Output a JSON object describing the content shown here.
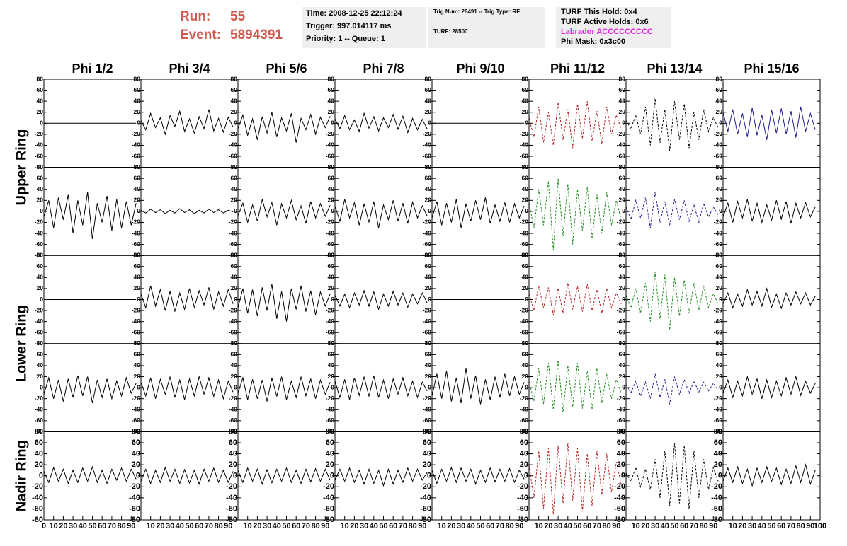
{
  "header": {
    "run_label": "Run:",
    "run": "55",
    "event_label": "Event:",
    "event": "5894391",
    "info_1": [
      "Time: 2008-12-25 22:12:24",
      "Trigger: 997.014117 ms",
      "Priority: 1 -- Queue: 1"
    ],
    "info_2": [
      "Trig Num: 28491 -- Trig Type: RF",
      "TURF: 28500"
    ],
    "info_3": [
      "TURF This Hold: 0x4",
      "TURF Active Holds: 0x6",
      "Labrador ACCCCCCCCC",
      "Phi Mask: 0x3c00"
    ]
  },
  "grid": {
    "columns": [
      "Phi 1/2",
      "Phi 3/4",
      "Phi 5/6",
      "Phi 7/8",
      "Phi 9/10",
      "Phi 11/12",
      "Phi 13/14",
      "Phi 15/16"
    ],
    "ring_labels": [
      "Upper Ring",
      "Lower Ring",
      "Nadir Ring"
    ],
    "xlim": [
      0,
      100
    ],
    "ylim": [
      -80,
      80
    ],
    "yticks": [
      -80,
      -60,
      -40,
      -20,
      0,
      20,
      40,
      60,
      80
    ],
    "xticks": [
      0,
      10,
      20,
      30,
      40,
      50,
      60,
      70,
      80,
      90,
      100
    ],
    "x": [
      0,
      5,
      10,
      15,
      20,
      25,
      30,
      35,
      40,
      45,
      50,
      55,
      60,
      65,
      70,
      75,
      80,
      85,
      90,
      95
    ],
    "panels": [
      [
        {
          "color": "#000000",
          "dashed": false,
          "values": [
            0,
            0,
            0,
            0,
            0,
            0,
            0,
            0,
            0,
            0,
            0,
            0,
            0,
            0,
            0,
            0,
            0,
            0,
            0,
            0
          ]
        },
        {
          "color": "#000000",
          "dashed": false,
          "values": [
            5,
            -12,
            18,
            -8,
            10,
            -20,
            14,
            -6,
            22,
            -15,
            8,
            -18,
            12,
            -10,
            25,
            -14,
            9,
            -16,
            11,
            -7
          ]
        },
        {
          "color": "#000000",
          "dashed": false,
          "values": [
            -10,
            15,
            -22,
            8,
            -30,
            12,
            -18,
            20,
            -25,
            10,
            -14,
            18,
            -35,
            9,
            -12,
            16,
            -20,
            11,
            -8,
            13
          ]
        },
        {
          "color": "#000000",
          "dashed": false,
          "values": [
            8,
            -10,
            14,
            -12,
            6,
            -15,
            18,
            -9,
            12,
            -14,
            10,
            -8,
            16,
            -11,
            13,
            -17,
            9,
            -12,
            7,
            -10
          ]
        },
        {
          "color": "#000000",
          "dashed": false,
          "values": [
            0,
            0,
            0,
            0,
            0,
            0,
            0,
            0,
            0,
            0,
            0,
            0,
            0,
            0,
            0,
            0,
            0,
            0,
            0,
            0
          ]
        },
        {
          "color": "#b22222",
          "dashed": true,
          "values": [
            10,
            -25,
            30,
            -35,
            20,
            -40,
            38,
            -30,
            25,
            -45,
            35,
            -28,
            40,
            -32,
            22,
            -38,
            30,
            -20,
            15,
            -10
          ]
        },
        {
          "color": "#000000",
          "dashed": true,
          "values": [
            5,
            -10,
            15,
            -20,
            30,
            -40,
            45,
            -35,
            25,
            -50,
            40,
            -30,
            35,
            -45,
            20,
            -30,
            25,
            -15,
            10,
            -8
          ]
        },
        {
          "color": "#1c1c8c",
          "dashed": false,
          "values": [
            20,
            -15,
            25,
            -20,
            18,
            -25,
            28,
            -22,
            15,
            -30,
            24,
            -18,
            27,
            -20,
            22,
            -26,
            30,
            -15,
            18,
            -12
          ]
        }
      ],
      [
        {
          "color": "#000000",
          "dashed": false,
          "values": [
            -10,
            20,
            -30,
            25,
            -15,
            30,
            -40,
            20,
            -25,
            35,
            -50,
            15,
            -20,
            28,
            -35,
            22,
            -30,
            18,
            -25,
            15
          ]
        },
        {
          "color": "#000000",
          "dashed": false,
          "values": [
            2,
            -3,
            4,
            -2,
            3,
            -4,
            2,
            -3,
            5,
            -2,
            3,
            -4,
            2,
            -3,
            4,
            -2,
            3,
            -3,
            2,
            -1
          ]
        },
        {
          "color": "#000000",
          "dashed": false,
          "values": [
            -8,
            15,
            -20,
            12,
            -18,
            22,
            -10,
            16,
            -25,
            14,
            -12,
            20,
            -15,
            10,
            -22,
            18,
            -12,
            14,
            -9,
            11
          ]
        },
        {
          "color": "#000000",
          "dashed": false,
          "values": [
            10,
            -18,
            22,
            -12,
            16,
            -25,
            14,
            -20,
            18,
            -30,
            12,
            -15,
            20,
            -18,
            15,
            -22,
            17,
            -12,
            10,
            -8
          ]
        },
        {
          "color": "#000000",
          "dashed": false,
          "values": [
            -12,
            18,
            -25,
            15,
            -20,
            22,
            -30,
            14,
            -18,
            20,
            -15,
            25,
            -22,
            12,
            -18,
            16,
            -20,
            14,
            -12,
            10
          ]
        },
        {
          "color": "#228b22",
          "dashed": true,
          "values": [
            15,
            -30,
            40,
            -25,
            55,
            -70,
            60,
            -45,
            50,
            -60,
            40,
            -35,
            45,
            -50,
            30,
            -40,
            35,
            -25,
            20,
            -15
          ]
        },
        {
          "color": "#1c1c8c",
          "dashed": true,
          "values": [
            8,
            -15,
            20,
            -12,
            25,
            -30,
            35,
            -20,
            18,
            -25,
            22,
            -15,
            20,
            -18,
            12,
            -20,
            15,
            -10,
            8,
            -6
          ]
        },
        {
          "color": "#000000",
          "dashed": false,
          "values": [
            -10,
            15,
            -20,
            18,
            -12,
            22,
            -18,
            15,
            -20,
            12,
            -16,
            20,
            -14,
            18,
            -22,
            15,
            -12,
            16,
            -10,
            8
          ]
        }
      ],
      [
        {
          "color": "#000000",
          "dashed": false,
          "values": [
            0,
            0,
            0,
            0,
            0,
            0,
            0,
            0,
            0,
            0,
            0,
            0,
            0,
            0,
            0,
            0,
            0,
            0,
            0,
            0
          ]
        },
        {
          "color": "#000000",
          "dashed": false,
          "values": [
            10,
            -15,
            25,
            -12,
            18,
            -20,
            15,
            -22,
            12,
            -18,
            20,
            -14,
            16,
            -10,
            22,
            -18,
            14,
            -12,
            18,
            -8
          ]
        },
        {
          "color": "#000000",
          "dashed": false,
          "values": [
            -15,
            20,
            -25,
            18,
            -30,
            22,
            -20,
            28,
            -35,
            15,
            -40,
            20,
            -18,
            25,
            -22,
            16,
            -28,
            14,
            -12,
            10
          ]
        },
        {
          "color": "#000000",
          "dashed": false,
          "values": [
            8,
            -12,
            10,
            -15,
            12,
            -10,
            16,
            -12,
            14,
            -18,
            10,
            -12,
            15,
            -10,
            12,
            -14,
            10,
            -8,
            12,
            -6
          ]
        },
        {
          "color": "#000000",
          "dashed": false,
          "values": [
            0,
            0,
            0,
            0,
            0,
            0,
            0,
            0,
            0,
            0,
            0,
            0,
            0,
            0,
            0,
            0,
            0,
            0,
            0,
            0
          ]
        },
        {
          "color": "#b22222",
          "dashed": true,
          "values": [
            10,
            -20,
            25,
            -15,
            22,
            -28,
            20,
            -25,
            30,
            -18,
            24,
            -22,
            28,
            -20,
            18,
            -25,
            20,
            -15,
            12,
            -8
          ]
        },
        {
          "color": "#228b22",
          "dashed": true,
          "values": [
            8,
            -15,
            20,
            -25,
            30,
            -40,
            50,
            -35,
            45,
            -55,
            40,
            -30,
            35,
            -25,
            30,
            -20,
            25,
            -15,
            10,
            -8
          ]
        },
        {
          "color": "#000000",
          "dashed": false,
          "values": [
            -8,
            12,
            -15,
            10,
            -12,
            18,
            -10,
            15,
            -12,
            20,
            -14,
            10,
            -16,
            12,
            -10,
            14,
            -8,
            12,
            -10,
            6
          ]
        }
      ],
      [
        {
          "color": "#000000",
          "dashed": false,
          "values": [
            -12,
            18,
            -20,
            14,
            -25,
            16,
            -18,
            22,
            -15,
            20,
            -28,
            14,
            -18,
            16,
            -20,
            12,
            -15,
            18,
            -10,
            8
          ]
        },
        {
          "color": "#000000",
          "dashed": false,
          "values": [
            10,
            -15,
            18,
            -20,
            15,
            -12,
            20,
            -18,
            14,
            -22,
            16,
            -15,
            20,
            -12,
            18,
            -16,
            14,
            -20,
            12,
            -8
          ]
        },
        {
          "color": "#000000",
          "dashed": false,
          "values": [
            -10,
            18,
            -22,
            15,
            -20,
            14,
            -25,
            18,
            -16,
            20,
            -22,
            12,
            -18,
            20,
            -15,
            16,
            -20,
            14,
            -12,
            10
          ]
        },
        {
          "color": "#000000",
          "dashed": false,
          "values": [
            12,
            -18,
            15,
            -22,
            18,
            -14,
            20,
            -16,
            22,
            -18,
            14,
            -20,
            16,
            -12,
            18,
            -15,
            12,
            -18,
            10,
            -6
          ]
        },
        {
          "color": "#000000",
          "dashed": false,
          "values": [
            -15,
            25,
            -20,
            30,
            -25,
            18,
            -28,
            35,
            -20,
            22,
            -30,
            15,
            -22,
            20,
            -18,
            25,
            -15,
            20,
            -12,
            10
          ]
        },
        {
          "color": "#228b22",
          "dashed": true,
          "values": [
            12,
            -25,
            35,
            -30,
            45,
            -40,
            50,
            -45,
            40,
            -35,
            45,
            -38,
            30,
            -40,
            35,
            -28,
            25,
            -20,
            15,
            -10
          ]
        },
        {
          "color": "#1c1c8c",
          "dashed": true,
          "values": [
            6,
            -10,
            12,
            -15,
            10,
            -20,
            25,
            -18,
            15,
            -30,
            20,
            -12,
            15,
            -10,
            12,
            -8,
            10,
            -6,
            8,
            -5
          ]
        },
        {
          "color": "#000000",
          "dashed": false,
          "values": [
            -10,
            14,
            -18,
            12,
            -15,
            20,
            -12,
            16,
            -20,
            14,
            -18,
            12,
            -15,
            18,
            -12,
            20,
            -14,
            12,
            -10,
            8
          ]
        }
      ],
      [
        {
          "color": "#000000",
          "dashed": false,
          "values": [
            8,
            -12,
            15,
            -10,
            12,
            -14,
            10,
            -12,
            14,
            -10,
            16,
            -12,
            10,
            -14,
            12,
            -8,
            14,
            -10,
            12,
            -6
          ]
        },
        {
          "color": "#000000",
          "dashed": false,
          "values": [
            -10,
            12,
            -14,
            10,
            -12,
            15,
            -10,
            12,
            -14,
            11,
            -13,
            10,
            -15,
            12,
            -10,
            14,
            -12,
            10,
            -12,
            8
          ]
        },
        {
          "color": "#000000",
          "dashed": false,
          "values": [
            10,
            -12,
            14,
            -10,
            12,
            -15,
            11,
            -13,
            12,
            -10,
            14,
            -12,
            10,
            -14,
            12,
            -11,
            13,
            -10,
            12,
            -8
          ]
        },
        {
          "color": "#000000",
          "dashed": false,
          "values": [
            -8,
            12,
            -10,
            14,
            -12,
            10,
            -15,
            12,
            -14,
            10,
            -18,
            12,
            -15,
            10,
            -12,
            14,
            -10,
            12,
            -8,
            6
          ]
        },
        {
          "color": "#000000",
          "dashed": false,
          "values": [
            10,
            -14,
            12,
            -10,
            15,
            -12,
            14,
            -10,
            12,
            -15,
            10,
            -12,
            14,
            -11,
            12,
            -10,
            13,
            -12,
            10,
            -6
          ]
        },
        {
          "color": "#b22222",
          "dashed": true,
          "values": [
            20,
            -40,
            45,
            -60,
            50,
            -70,
            55,
            -50,
            60,
            -45,
            50,
            -65,
            40,
            -55,
            45,
            -35,
            40,
            -30,
            25,
            -15
          ]
        },
        {
          "color": "#000000",
          "dashed": true,
          "values": [
            5,
            -10,
            15,
            -20,
            12,
            -25,
            30,
            -40,
            45,
            -55,
            60,
            -50,
            55,
            -60,
            45,
            -40,
            30,
            -25,
            15,
            -10
          ]
        },
        {
          "color": "#000000",
          "dashed": false,
          "values": [
            -10,
            14,
            -12,
            16,
            -14,
            12,
            -18,
            14,
            -12,
            16,
            -10,
            14,
            -16,
            12,
            -14,
            18,
            -12,
            20,
            -15,
            10
          ]
        }
      ]
    ]
  }
}
